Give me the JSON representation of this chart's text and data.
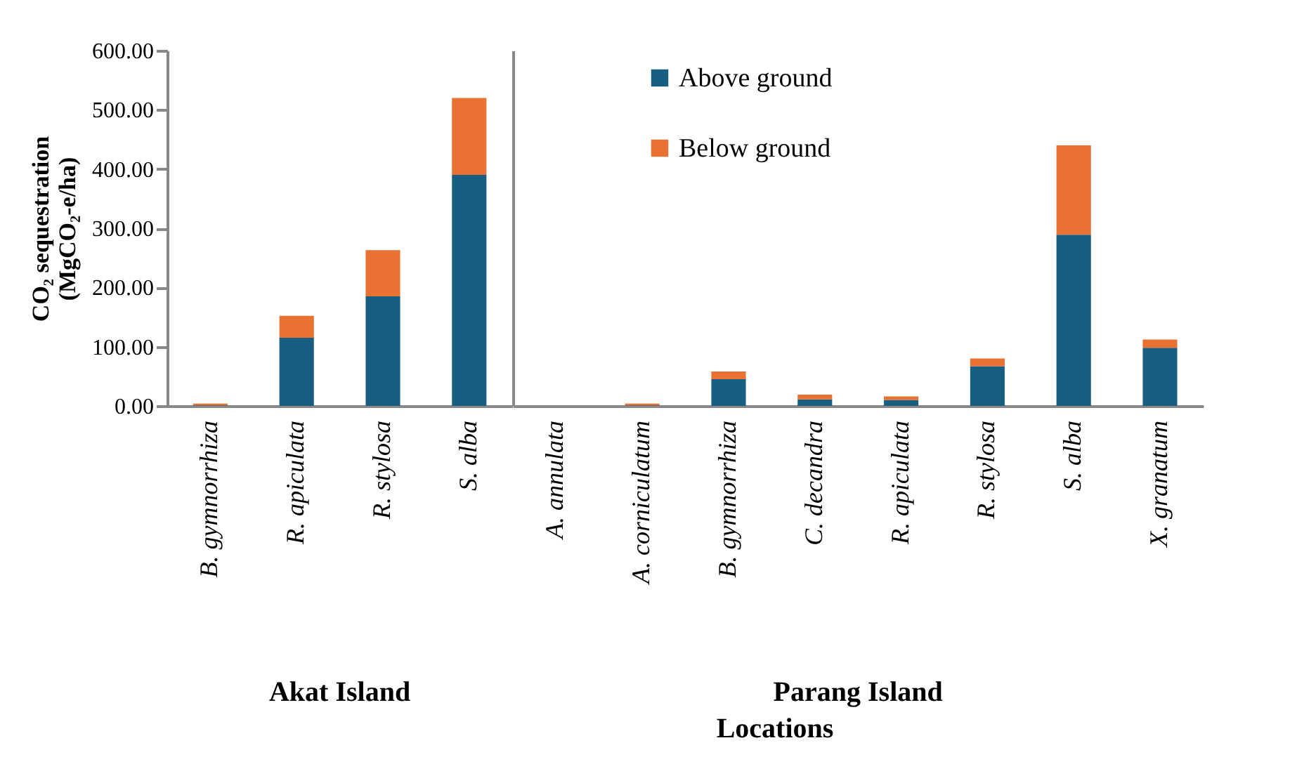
{
  "chart_data": [
    {
      "type": "bar",
      "stacked": true,
      "xlabel": "Akat Island",
      "ylabel": "CO₂ sequestration\n(MgCO₂-e/ha)",
      "annotations": [
        "Locations"
      ],
      "categories": [
        "B. gymnorrhiza",
        "R. apiculata",
        "R. stylosa",
        "S. alba"
      ],
      "series": [
        {
          "color": "#175e81",
          "values": [
            1,
            115,
            185,
            390
          ]
        },
        {
          "color": "#e97132",
          "values": [
            3,
            37,
            78,
            130
          ]
        }
      ],
      "ylim": [
        0,
        600
      ],
      "yticks": [
        {
          "value": 0,
          "label": "0.00"
        },
        {
          "value": 100,
          "label": "100.00"
        },
        {
          "value": 200,
          "label": "200.00"
        },
        {
          "value": 300,
          "label": "300.00"
        },
        {
          "value": 400,
          "label": "400.00"
        },
        {
          "value": 500,
          "label": "500.00"
        },
        {
          "value": 600,
          "label": "600.00"
        }
      ]
    },
    {
      "type": "bar",
      "stacked": true,
      "xlabel": "Parang Island",
      "legend": "top left",
      "tick_labels": "x",
      "categories": [
        "A. annulata",
        "A. corniculatum",
        "B. gymnorrhiza",
        "C. decandra",
        "R. apiculata",
        "R. stylosa",
        "S. alba",
        "X. granatum"
      ],
      "series": [
        {
          "name": "Above ground",
          "color": "#175e81",
          "values": [
            0,
            1,
            45,
            11,
            10,
            67,
            289,
            98
          ]
        },
        {
          "name": "Below ground",
          "color": "#e97132",
          "values": [
            0,
            3,
            13,
            8,
            6,
            13,
            151,
            14
          ]
        }
      ],
      "ylim": [
        0,
        600
      ]
    }
  ]
}
